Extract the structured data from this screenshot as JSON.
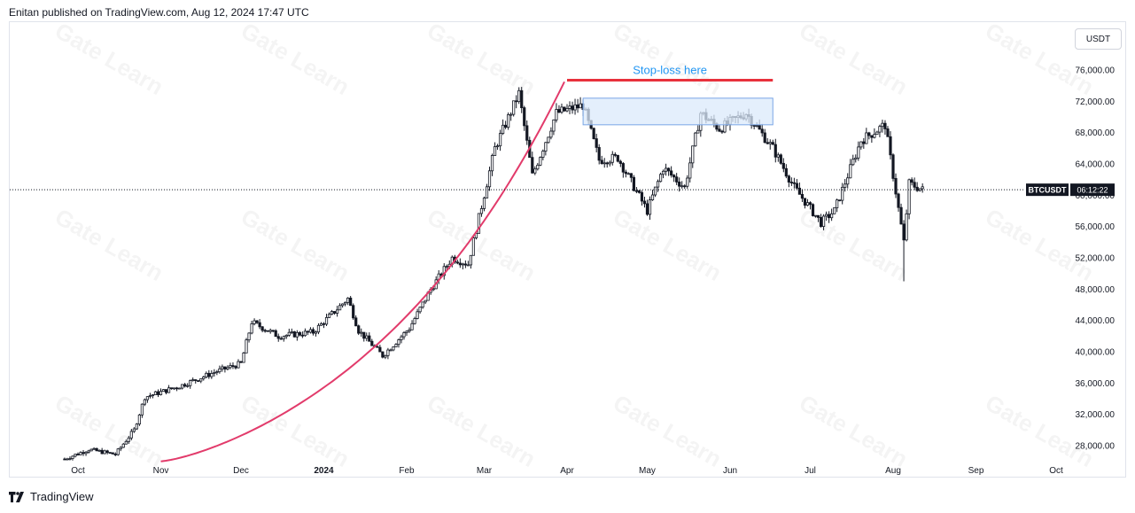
{
  "header": {
    "text": "Enitan published on TradingView.com, Aug 12, 2024 17:47 UTC"
  },
  "currency_button": {
    "label": "USDT"
  },
  "footer": {
    "brand": "TradingView",
    "logo_icon": "tradingview-logo-icon"
  },
  "watermark": {
    "text": "Gate Learn"
  },
  "colors": {
    "candle": "#131722",
    "parabola": "#e23b6b",
    "stoploss_line": "#e8313c",
    "stoploss_text": "#2196f3",
    "zone_fill": "#dbe9fb",
    "zone_border": "#7aa6e6",
    "grid_text": "#131722"
  },
  "chart_data": {
    "type": "candlestick",
    "symbol": "BTCUSDT",
    "countdown": "06:12:22",
    "last_price": 60700,
    "x_ticks": [
      "Oct",
      "Nov",
      "Dec",
      "2024",
      "Feb",
      "Mar",
      "Apr",
      "May",
      "Jun",
      "Jul",
      "Aug",
      "Sep",
      "Oct"
    ],
    "y_ticks": [
      "76,000.00",
      "72,000.00",
      "68,000.00",
      "64,000.00",
      "60,000.00",
      "56,000.00",
      "52,000.00",
      "48,000.00",
      "44,000.00",
      "40,000.00",
      "36,000.00",
      "32,000.00",
      "28,000.00"
    ],
    "ylim": [
      26000,
      78000
    ],
    "annotations": {
      "stoploss_label": "Stop-loss here",
      "stoploss_level": 74700,
      "stoploss_start": "2024-04-01",
      "stoploss_end": "2024-06-17",
      "zone_start": "2024-04-07",
      "zone_end": "2024-06-17",
      "zone_low": 69000,
      "zone_high": 72400,
      "parabola_start": "2023-11-01",
      "parabola_end": "2024-03-31"
    },
    "anchors": [
      [
        "2023-09-26",
        26300
      ],
      [
        "2023-10-05",
        27500
      ],
      [
        "2023-10-15",
        26900
      ],
      [
        "2023-10-22",
        30000
      ],
      [
        "2023-10-26",
        34200
      ],
      [
        "2023-11-08",
        35600
      ],
      [
        "2023-11-22",
        37500
      ],
      [
        "2023-12-01",
        38500
      ],
      [
        "2023-12-05",
        43800
      ],
      [
        "2023-12-15",
        42000
      ],
      [
        "2023-12-28",
        42500
      ],
      [
        "2024-01-10",
        46800
      ],
      [
        "2024-01-14",
        42700
      ],
      [
        "2024-01-23",
        39500
      ],
      [
        "2024-02-02",
        43000
      ],
      [
        "2024-02-10",
        48000
      ],
      [
        "2024-02-18",
        52000
      ],
      [
        "2024-02-24",
        51200
      ],
      [
        "2024-03-05",
        66000
      ],
      [
        "2024-03-14",
        73000
      ],
      [
        "2024-03-19",
        62500
      ],
      [
        "2024-03-28",
        70500
      ],
      [
        "2024-04-07",
        71500
      ],
      [
        "2024-04-13",
        64500
      ],
      [
        "2024-04-20",
        64800
      ],
      [
        "2024-05-01",
        58000
      ],
      [
        "2024-05-07",
        63500
      ],
      [
        "2024-05-15",
        61000
      ],
      [
        "2024-05-21",
        70500
      ],
      [
        "2024-05-28",
        68500
      ],
      [
        "2024-06-07",
        70500
      ],
      [
        "2024-06-17",
        66000
      ],
      [
        "2024-06-25",
        61000
      ],
      [
        "2024-07-05",
        56500
      ],
      [
        "2024-07-10",
        58000
      ],
      [
        "2024-07-20",
        67000
      ],
      [
        "2024-07-29",
        69000
      ],
      [
        "2024-08-05",
        54000
      ],
      [
        "2024-08-07",
        61500
      ],
      [
        "2024-08-12",
        60700
      ]
    ],
    "wick_extremes": [
      [
        "2024-08-05",
        49000
      ],
      [
        "2024-03-14",
        73800
      ]
    ]
  }
}
